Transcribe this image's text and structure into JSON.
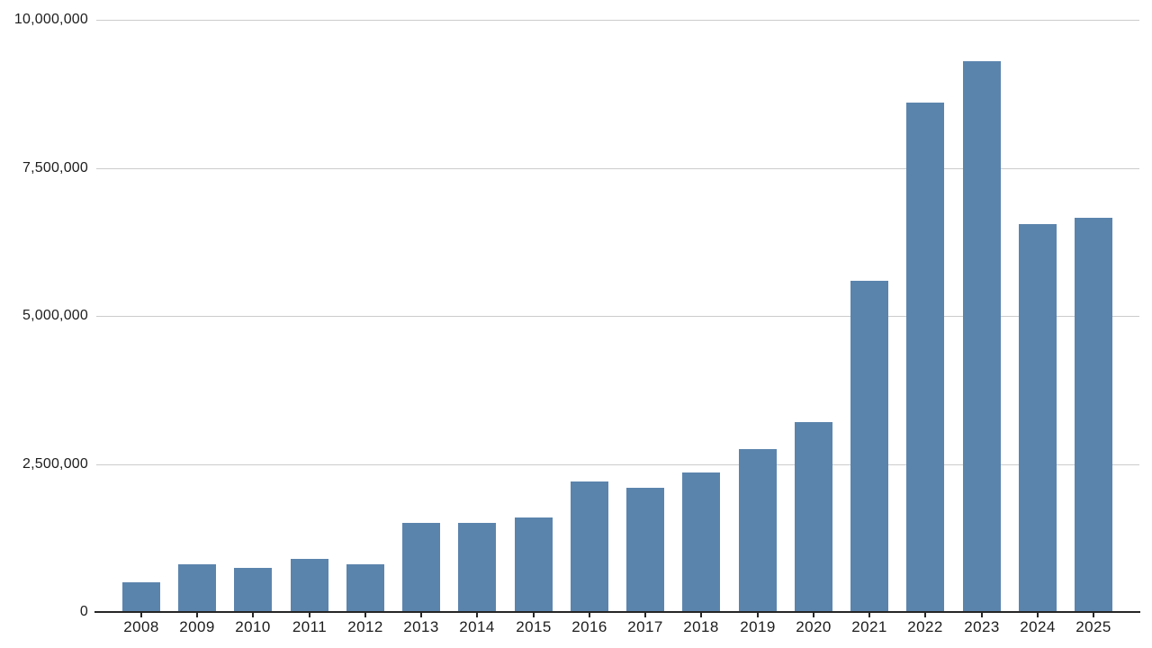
{
  "chart_data": {
    "type": "bar",
    "title": "",
    "xlabel": "",
    "ylabel": "",
    "categories": [
      "2008",
      "2009",
      "2010",
      "2011",
      "2012",
      "2013",
      "2014",
      "2015",
      "2016",
      "2017",
      "2018",
      "2019",
      "2020",
      "2021",
      "2022",
      "2023",
      "2024",
      "2025"
    ],
    "values": [
      500000,
      800000,
      750000,
      900000,
      800000,
      1500000,
      1500000,
      1600000,
      2200000,
      2100000,
      2350000,
      2750000,
      3200000,
      5600000,
      8600000,
      9300000,
      6550000,
      6650000
    ],
    "ylim": [
      0,
      10000000
    ],
    "yticks": [
      {
        "value": 0,
        "label": "0"
      },
      {
        "value": 2500000,
        "label": "2,500,000"
      },
      {
        "value": 5000000,
        "label": "5,000,000"
      },
      {
        "value": 7500000,
        "label": "7,500,000"
      },
      {
        "value": 10000000,
        "label": "10,000,000"
      }
    ],
    "grid": true,
    "legend": null,
    "colors": {
      "bar": "#5b84ad",
      "gridline": "#cccccc",
      "axis": "#262626",
      "text": "#1d1d1d",
      "background": "#ffffff"
    }
  }
}
